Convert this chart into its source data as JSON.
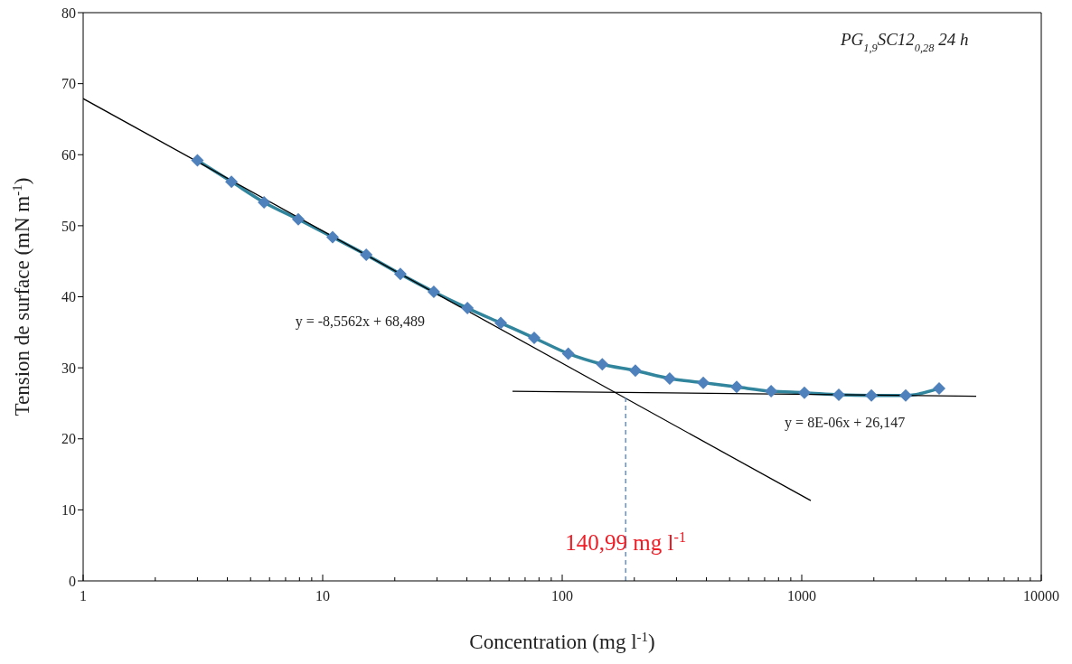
{
  "chart_data": {
    "type": "line",
    "xlabel": "Concentration (mg l$^{-1}$)",
    "ylabel": "Tension de surface  (mN m$^{-1}$)",
    "log": "x",
    "marker": "diamond",
    "xlim": [
      1,
      10000
    ],
    "xticks": [
      1,
      {
        "value": 2,
        "label": null
      },
      {
        "value": 3,
        "label": null
      },
      {
        "value": 4,
        "label": null
      },
      {
        "value": 5,
        "label": null
      },
      {
        "value": 6,
        "label": null
      },
      {
        "value": 7,
        "label": null
      },
      {
        "value": 8,
        "label": null
      },
      {
        "value": 9,
        "label": null
      },
      10,
      {
        "value": 20,
        "label": null
      },
      {
        "value": 30,
        "label": null
      },
      {
        "value": 40,
        "label": null
      },
      {
        "value": 50,
        "label": null
      },
      {
        "value": 60,
        "label": null
      },
      {
        "value": 70,
        "label": null
      },
      {
        "value": 80,
        "label": null
      },
      {
        "value": 90,
        "label": null
      },
      100,
      {
        "value": 200,
        "label": null
      },
      {
        "value": 300,
        "label": null
      },
      {
        "value": 400,
        "label": null
      },
      {
        "value": 500,
        "label": null
      },
      {
        "value": 600,
        "label": null
      },
      {
        "value": 700,
        "label": null
      },
      {
        "value": 800,
        "label": null
      },
      {
        "value": 900,
        "label": null
      },
      1000,
      {
        "value": 2000,
        "label": null
      },
      {
        "value": 3000,
        "label": null
      },
      {
        "value": 4000,
        "label": null
      },
      {
        "value": 5000,
        "label": null
      },
      {
        "value": 6000,
        "label": null
      },
      {
        "value": 7000,
        "label": null
      },
      {
        "value": 8000,
        "label": null
      },
      {
        "value": 9000,
        "label": null
      },
      10000
    ],
    "ylim": [
      0,
      80
    ],
    "yticks": [
      0,
      10,
      20,
      30,
      40,
      50,
      60,
      70,
      80
    ],
    "series": [
      {
        "color": "#31859c",
        "x": [
          3.0,
          4.16,
          5.69,
          7.91,
          11.0,
          15.2,
          21.1,
          29.1,
          40.2,
          55.4,
          76.4,
          106,
          147,
          202,
          281,
          388,
          535,
          745,
          1026,
          1428,
          1953,
          2716,
          3747
        ],
        "values": [
          59.2,
          56.2,
          53.3,
          50.9,
          48.4,
          45.9,
          43.2,
          40.7,
          38.4,
          36.3,
          34.2,
          32.0,
          30.5,
          29.6,
          28.5,
          27.9,
          27.3,
          26.7,
          26.5,
          26.2,
          26.1,
          26.1,
          27.1
        ],
        "colors": [
          "#4f81bd",
          "#4f81bd",
          "#4f81bd",
          "#4f81bd",
          "#4f81bd",
          "#4f81bd",
          "#4f81bd",
          "#4f81bd",
          "#4f81bd",
          "#4f81bd",
          "#4f81bd",
          "#4f81bd",
          "#4f81bd",
          "#4f81bd",
          "#4f81bd",
          "#4f81bd",
          "#4f81bd",
          "#4f81bd",
          "#4f81bd",
          "#4f81bd",
          "#4f81bd",
          "#4f81bd",
          "#4f81bd"
        ]
      },
      {
        "type": "line",
        "marker": "none",
        "color": "#000000",
        "x": [
          1,
          1091
        ],
        "values": [
          67.9,
          11.3
        ]
      },
      {
        "type": "line",
        "marker": "none",
        "color": "#000000",
        "x": [
          62,
          5350
        ],
        "values": [
          26.7,
          26.0
        ]
      },
      {
        "type": "line",
        "marker": "none",
        "line_style": "dashed",
        "color": "#4f81bd",
        "x": [
          184,
          184
        ],
        "values": [
          0,
          26.1
        ]
      }
    ],
    "annotations": [
      "PG$_{1,9}$SC12$_{0,28}$ 24 h",
      "y = -8,5562x + 68,489",
      "y = 8E-06x + 26,147",
      {
        "text": "140,99 mg l$^{-1}$",
        "x": 184,
        "y": 5.1
      }
    ]
  }
}
